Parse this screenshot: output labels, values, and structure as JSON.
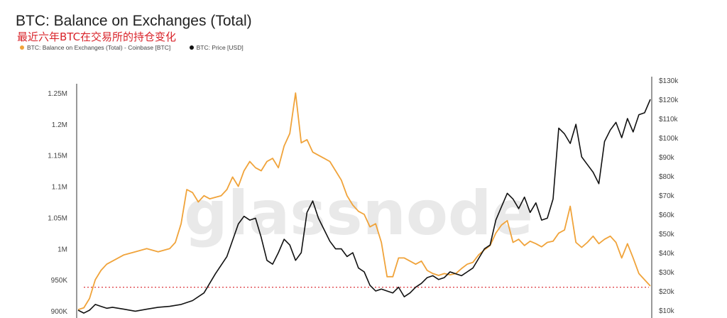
{
  "chart_title": "BTC: Balance on Exchanges (Total)",
  "subtitle": "最近六年BTC在交易所的持仓变化",
  "watermark": "glassnode",
  "legend": [
    {
      "label": "BTC: Balance on Exchanges (Total) - Coinbase [BTC]",
      "color": "#f0a33a"
    },
    {
      "label": "BTC: Price [USD]",
      "color": "#111111"
    }
  ],
  "chart_data": {
    "type": "line",
    "title": "BTC: Balance on Exchanges (Total)",
    "grid": false,
    "legend_position": "top-left",
    "left_axis": {
      "ticks": [
        "1.25M",
        "1.2M",
        "1.15M",
        "1.1M",
        "1.05M",
        "1M",
        "950K",
        "900K"
      ],
      "values": [
        1250000,
        1200000,
        1150000,
        1100000,
        1050000,
        1000000,
        950000,
        900000
      ],
      "range": [
        900000,
        1250000
      ]
    },
    "right_axis": {
      "ticks": [
        "$130k",
        "$120k",
        "$110k",
        "$100k",
        "$90k",
        "$80k",
        "$70k",
        "$60k",
        "$50k",
        "$40k",
        "$30k",
        "$20k",
        "$10k"
      ],
      "values": [
        130000,
        120000,
        110000,
        100000,
        90000,
        80000,
        70000,
        60000,
        50000,
        40000,
        30000,
        20000,
        10000
      ],
      "range": [
        10000,
        130000
      ]
    },
    "reference_line": {
      "axis": "left",
      "value": 938000,
      "style": "dashed",
      "color": "#d9232a"
    },
    "x_domain": [
      0,
      100
    ],
    "series": [
      {
        "name": "BTC: Balance on Exchanges (Total) - Coinbase [BTC]",
        "axis": "left",
        "color": "#f0a33a",
        "x": [
          0,
          1,
          2,
          3,
          4,
          5,
          6,
          8,
          10,
          12,
          14,
          16,
          17,
          18,
          19,
          20,
          21,
          22,
          23,
          25,
          26,
          27,
          28,
          29,
          30,
          31,
          32,
          33,
          34,
          35,
          36,
          37,
          38,
          39,
          40,
          41,
          42,
          43,
          44,
          45,
          46,
          47,
          48,
          49,
          50,
          51,
          52,
          53,
          54,
          55,
          56,
          57,
          58,
          59,
          60,
          61,
          62,
          63,
          64,
          65,
          66,
          67,
          68,
          69,
          70,
          71,
          72,
          73,
          74,
          75,
          76,
          77,
          78,
          79,
          80,
          81,
          82,
          83,
          84,
          85,
          86,
          87,
          88,
          89,
          90,
          91,
          92,
          93,
          94,
          95,
          96,
          97,
          98,
          99,
          100
        ],
        "y": [
          902000,
          905000,
          920000,
          950000,
          965000,
          975000,
          980000,
          990000,
          995000,
          1000000,
          995000,
          1000000,
          1010000,
          1040000,
          1095000,
          1090000,
          1075000,
          1085000,
          1080000,
          1085000,
          1095000,
          1115000,
          1100000,
          1125000,
          1140000,
          1130000,
          1125000,
          1140000,
          1145000,
          1130000,
          1165000,
          1185000,
          1250000,
          1170000,
          1175000,
          1155000,
          1150000,
          1145000,
          1140000,
          1125000,
          1110000,
          1085000,
          1070000,
          1060000,
          1055000,
          1035000,
          1040000,
          1010000,
          955000,
          955000,
          985000,
          985000,
          980000,
          975000,
          980000,
          965000,
          960000,
          957000,
          960000,
          958000,
          960000,
          968000,
          975000,
          978000,
          990000,
          998000,
          1005000,
          1025000,
          1038000,
          1045000,
          1010000,
          1015000,
          1005000,
          1012000,
          1008000,
          1003000,
          1010000,
          1012000,
          1025000,
          1030000,
          1068000,
          1010000,
          1002000,
          1010000,
          1020000,
          1008000,
          1015000,
          1020000,
          1010000,
          985000,
          1008000,
          985000,
          960000,
          950000,
          940000
        ]
      },
      {
        "name": "BTC: Price [USD]",
        "axis": "right",
        "color": "#111111",
        "x": [
          0,
          1,
          2,
          3,
          4,
          5,
          6,
          8,
          10,
          12,
          14,
          16,
          18,
          20,
          22,
          24,
          26,
          28,
          29,
          30,
          31,
          32,
          33,
          34,
          35,
          36,
          37,
          38,
          39,
          40,
          41,
          42,
          43,
          44,
          45,
          46,
          47,
          48,
          49,
          50,
          51,
          52,
          53,
          54,
          55,
          56,
          57,
          58,
          59,
          60,
          61,
          62,
          63,
          64,
          65,
          66,
          67,
          68,
          69,
          70,
          71,
          72,
          73,
          74,
          75,
          76,
          77,
          78,
          79,
          80,
          81,
          82,
          83,
          84,
          85,
          86,
          87,
          88,
          89,
          90,
          91,
          92,
          93,
          94,
          95,
          96,
          97,
          98,
          99,
          100
        ],
        "y": [
          10000,
          8500,
          10000,
          13000,
          12000,
          11000,
          11500,
          10500,
          9500,
          10500,
          11500,
          12000,
          13000,
          15000,
          19000,
          29000,
          38000,
          55000,
          59000,
          57000,
          58000,
          48000,
          36000,
          34000,
          40000,
          47000,
          44000,
          36000,
          40000,
          61000,
          67000,
          58000,
          52000,
          46000,
          42000,
          42000,
          38000,
          40000,
          32000,
          30000,
          23000,
          20000,
          21000,
          20000,
          19000,
          22000,
          17000,
          19000,
          22000,
          24000,
          27000,
          28000,
          26000,
          27000,
          30000,
          29000,
          28000,
          30000,
          32000,
          37000,
          42000,
          44000,
          57000,
          64000,
          71000,
          68000,
          63000,
          69000,
          61000,
          66000,
          57000,
          58000,
          68000,
          105000,
          102000,
          97000,
          107000,
          90000,
          86000,
          82000,
          76000,
          98000,
          104000,
          108000,
          100000,
          110000,
          103000,
          112000,
          113000,
          120000
        ]
      }
    ]
  }
}
